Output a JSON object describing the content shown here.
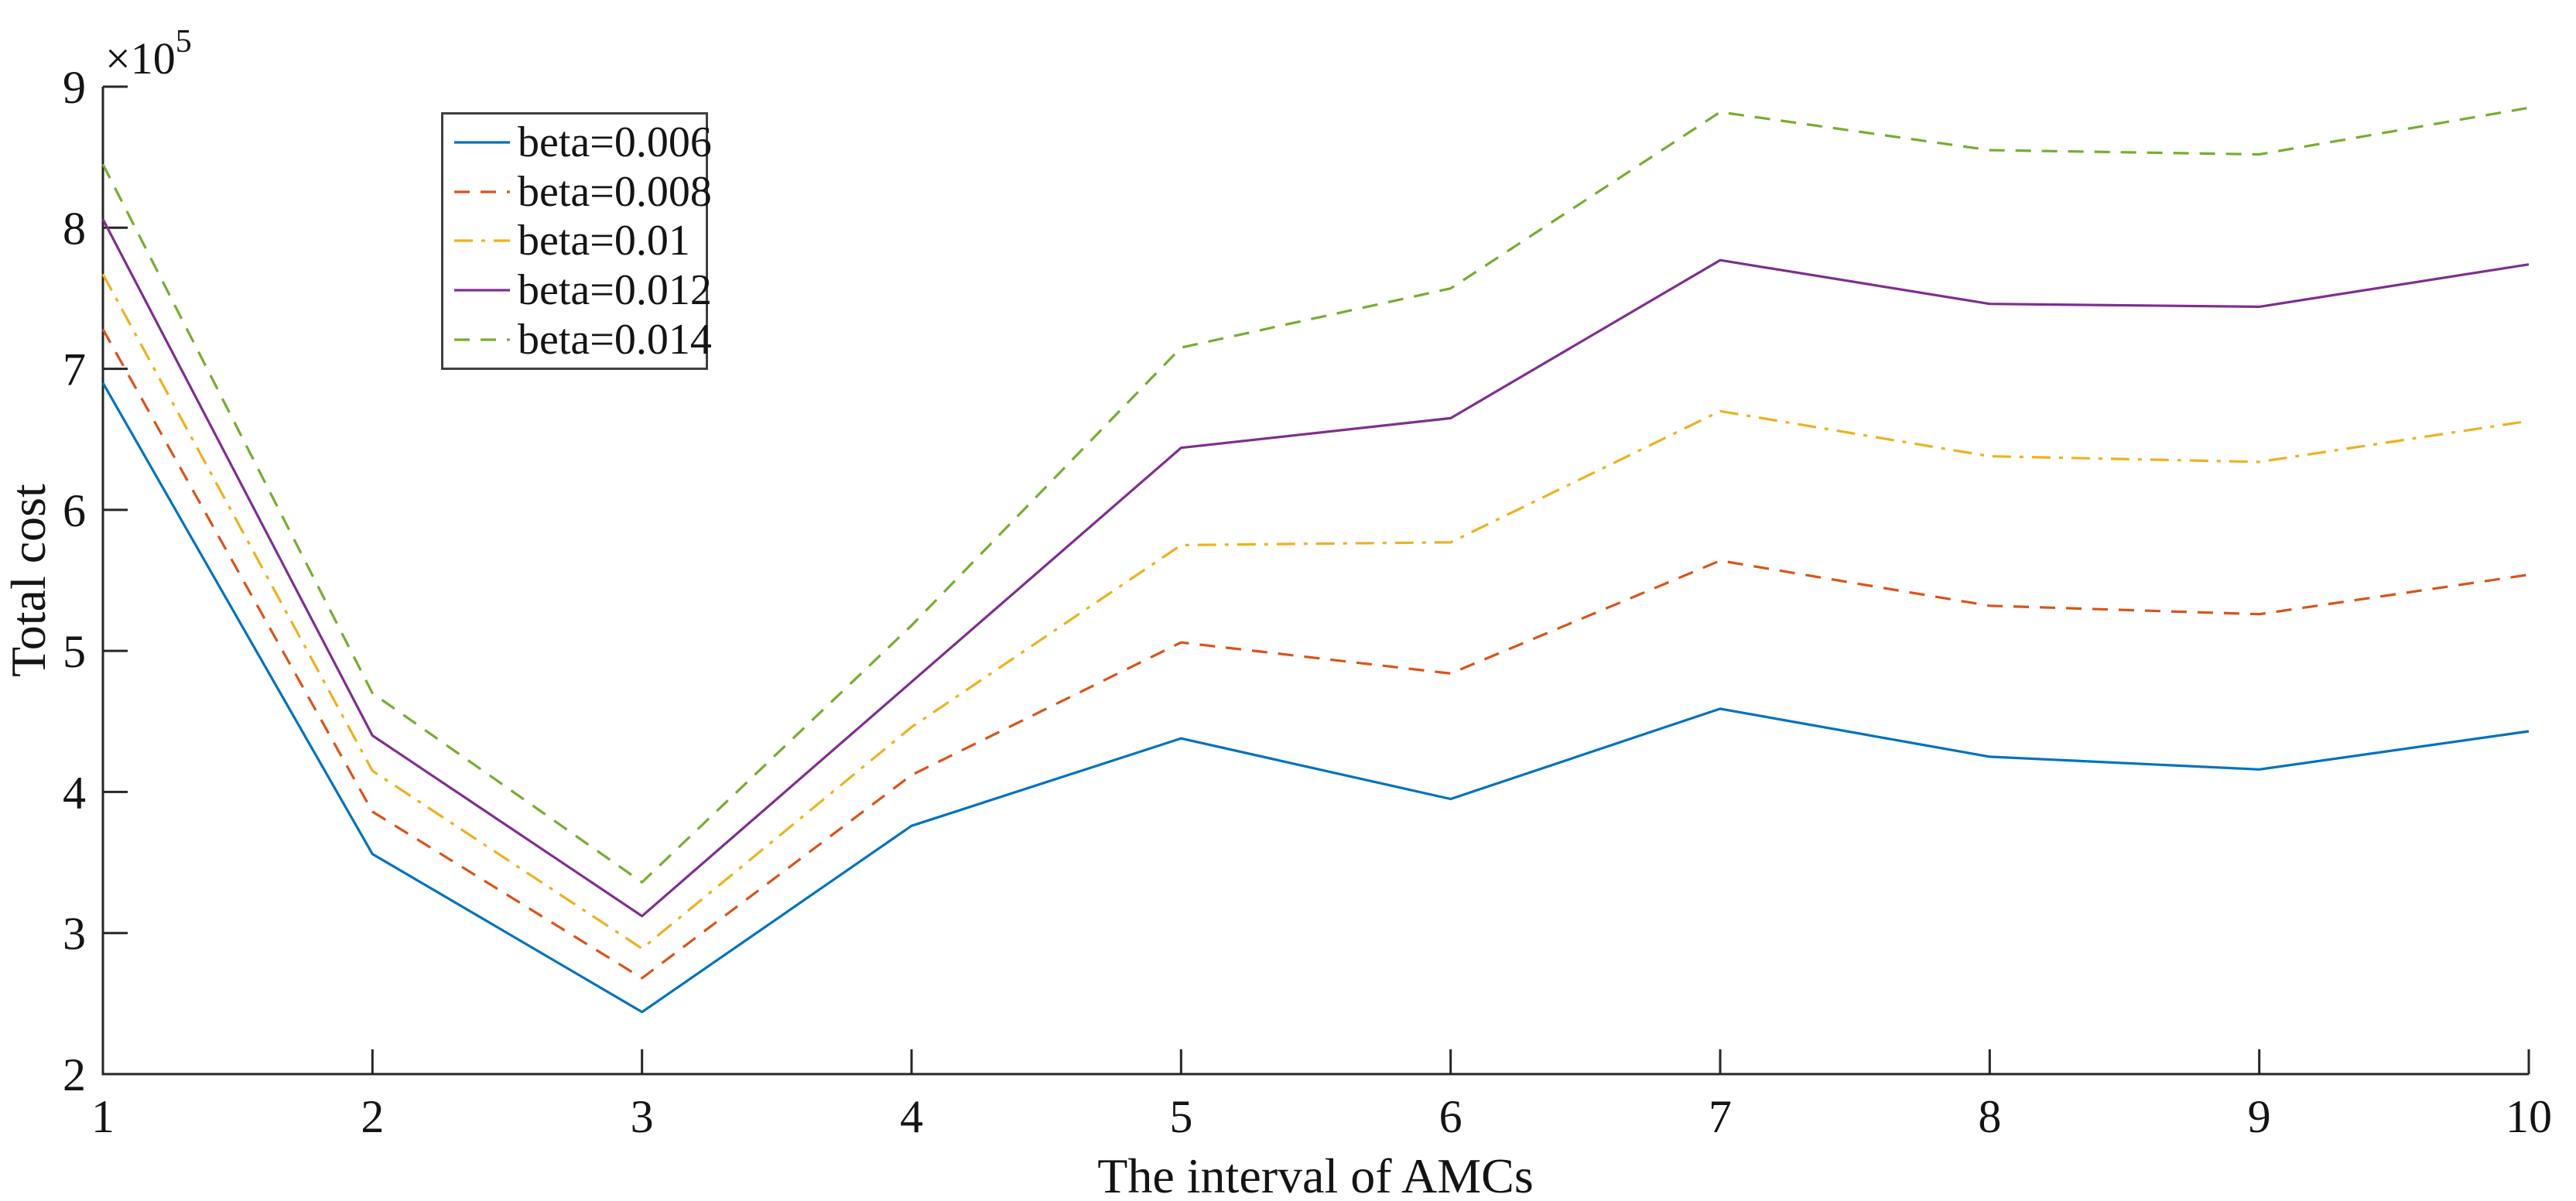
{
  "figure": {
    "background": "#ffffff",
    "axis_color": "#262626",
    "text_color": "#141414"
  },
  "chart_data": {
    "type": "line",
    "title": "",
    "xlabel": "The interval of AMCs",
    "ylabel": "Total cost",
    "y_unit_multiplier": {
      "base": "×10",
      "exponent": "5"
    },
    "unit_note": "y values are in units of 10^5",
    "xlim": [
      1,
      10
    ],
    "ylim": [
      2,
      9
    ],
    "x_ticks": [
      "1",
      "2",
      "3",
      "4",
      "5",
      "6",
      "7",
      "8",
      "9",
      "10"
    ],
    "y_ticks": [
      "2",
      "3",
      "4",
      "5",
      "6",
      "7",
      "8",
      "9"
    ],
    "grid": false,
    "legend_position": "top-left-inside",
    "x": [
      1,
      2,
      3,
      4,
      5,
      6,
      7,
      8,
      9,
      10
    ],
    "series": [
      {
        "name": "beta=0.006",
        "color": "#0072BD",
        "line_style": "solid",
        "values": [
          6.9,
          3.56,
          2.44,
          3.76,
          4.38,
          3.95,
          4.59,
          4.25,
          4.16,
          4.43
        ]
      },
      {
        "name": "beta=0.008",
        "color": "#D95319",
        "line_style": "dashed",
        "values": [
          7.28,
          3.86,
          2.68,
          4.12,
          5.06,
          4.84,
          5.64,
          5.32,
          5.26,
          5.54
        ]
      },
      {
        "name": "beta=0.01",
        "color": "#EDB120",
        "line_style": "dash-dot",
        "values": [
          7.67,
          4.15,
          2.89,
          4.46,
          5.75,
          5.77,
          6.7,
          6.38,
          6.34,
          6.63
        ]
      },
      {
        "name": "beta=0.012",
        "color": "#7E2F8E",
        "line_style": "solid",
        "values": [
          8.06,
          4.4,
          3.12,
          4.78,
          6.44,
          6.65,
          7.77,
          7.46,
          7.44,
          7.74
        ]
      },
      {
        "name": "beta=0.014",
        "color": "#77AC30",
        "line_style": "dashed",
        "values": [
          8.45,
          4.7,
          3.36,
          5.18,
          7.15,
          7.57,
          8.82,
          8.55,
          8.52,
          8.85
        ]
      }
    ]
  }
}
